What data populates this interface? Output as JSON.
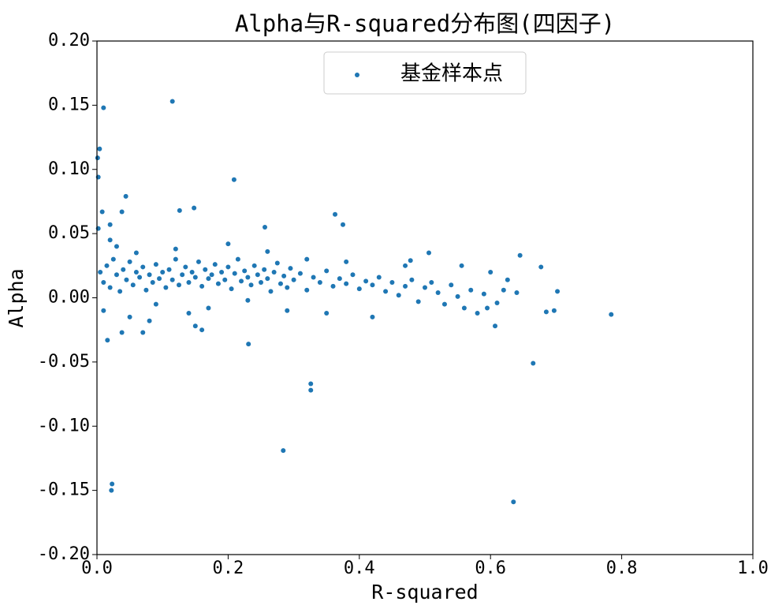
{
  "chart_data": {
    "type": "scatter",
    "title": "Alpha与R-squared分布图(四因子)",
    "x_label": "R-squared",
    "y_label": "Alpha",
    "xlim": [
      0,
      1
    ],
    "ylim": [
      -0.2,
      0.2
    ],
    "xticks": [
      {
        "value": 0,
        "label": "0.0"
      },
      {
        "value": 0.2,
        "label": "0.2"
      },
      {
        "value": 0.4,
        "label": "0.4"
      },
      {
        "value": 0.6,
        "label": "0.6"
      },
      {
        "value": 0.8,
        "label": "0.8"
      },
      {
        "value": 1,
        "label": "1.0"
      }
    ],
    "yticks": [
      {
        "value": 0.2,
        "label": "0.20"
      },
      {
        "value": 0.15,
        "label": "0.15"
      },
      {
        "value": 0.1,
        "label": "0.10"
      },
      {
        "value": 0.05,
        "label": "0.05"
      },
      {
        "value": 0,
        "label": "0.00"
      },
      {
        "value": -0.05,
        "label": "-0.05"
      },
      {
        "value": -0.1,
        "label": "-0.10"
      },
      {
        "value": -0.15,
        "label": "-0.15"
      },
      {
        "value": -0.2,
        "label": "-0.20"
      }
    ],
    "legend": "upper center",
    "series": [
      {
        "name": "基金样本点",
        "color": "#1f77b4",
        "x": [
          0.01,
          0.115,
          0.004,
          0.001,
          0.002,
          0.209,
          0.044,
          0.148,
          0.126,
          0.008,
          0.038,
          0.363,
          0.375,
          0.256,
          0.002,
          0.02,
          0.15,
          0.16,
          0.016,
          0.038,
          0.07,
          0.231,
          0.326,
          0.326,
          0.284,
          0.023,
          0.022,
          0.635,
          0.665,
          0.784,
          0.702,
          0.677,
          0.645,
          0.607,
          0.685,
          0.556,
          0.506,
          0.478,
          0.6,
          0.595,
          0.626,
          0.697,
          0.005,
          0.01,
          0.015,
          0.02,
          0.025,
          0.03,
          0.035,
          0.04,
          0.045,
          0.05,
          0.055,
          0.06,
          0.065,
          0.07,
          0.075,
          0.08,
          0.085,
          0.09,
          0.095,
          0.1,
          0.105,
          0.11,
          0.115,
          0.12,
          0.125,
          0.13,
          0.135,
          0.14,
          0.145,
          0.15,
          0.155,
          0.16,
          0.165,
          0.17,
          0.175,
          0.18,
          0.185,
          0.19,
          0.195,
          0.2,
          0.205,
          0.21,
          0.215,
          0.22,
          0.225,
          0.23,
          0.235,
          0.24,
          0.245,
          0.25,
          0.255,
          0.26,
          0.265,
          0.27,
          0.275,
          0.28,
          0.285,
          0.29,
          0.295,
          0.3,
          0.31,
          0.32,
          0.33,
          0.34,
          0.35,
          0.36,
          0.37,
          0.38,
          0.39,
          0.4,
          0.41,
          0.42,
          0.43,
          0.44,
          0.45,
          0.46,
          0.47,
          0.48,
          0.49,
          0.5,
          0.51,
          0.52,
          0.53,
          0.54,
          0.55,
          0.56,
          0.57,
          0.58,
          0.59,
          0.61,
          0.62,
          0.64,
          0.01,
          0.03,
          0.06,
          0.09,
          0.12,
          0.17,
          0.2,
          0.23,
          0.26,
          0.29,
          0.32,
          0.35,
          0.38,
          0.05,
          0.14,
          0.42,
          0.47,
          0.02,
          0.08
        ],
        "y": [
          0.148,
          0.153,
          0.116,
          0.109,
          0.094,
          0.092,
          0.079,
          0.07,
          0.068,
          0.067,
          0.067,
          0.065,
          0.057,
          0.055,
          0.054,
          0.057,
          -0.022,
          -0.025,
          -0.033,
          -0.027,
          -0.027,
          -0.036,
          -0.067,
          -0.072,
          -0.119,
          -0.145,
          -0.15,
          -0.159,
          -0.051,
          -0.013,
          0.005,
          0.024,
          0.033,
          -0.022,
          -0.011,
          0.025,
          0.035,
          0.029,
          0.02,
          -0.008,
          0.014,
          -0.01,
          0.02,
          0.012,
          0.025,
          0.008,
          0.03,
          0.018,
          0.005,
          0.022,
          0.014,
          0.028,
          0.01,
          0.02,
          0.016,
          0.024,
          0.006,
          0.018,
          0.012,
          0.026,
          0.015,
          0.02,
          0.008,
          0.022,
          0.014,
          0.03,
          0.01,
          0.018,
          0.024,
          0.012,
          0.02,
          0.016,
          0.028,
          0.009,
          0.022,
          0.015,
          0.018,
          0.026,
          0.011,
          0.02,
          0.014,
          0.024,
          0.007,
          0.019,
          0.03,
          0.013,
          0.021,
          0.016,
          0.01,
          0.025,
          0.018,
          0.012,
          0.022,
          0.015,
          0.005,
          0.02,
          0.027,
          0.011,
          0.017,
          0.008,
          0.023,
          0.014,
          0.019,
          0.006,
          0.016,
          0.012,
          0.021,
          0.009,
          0.015,
          0.011,
          0.018,
          0.007,
          0.013,
          0.01,
          0.016,
          0.005,
          0.012,
          0.002,
          0.009,
          0.014,
          -0.003,
          0.008,
          0.012,
          0.004,
          -0.005,
          0.01,
          0.001,
          -0.008,
          0.006,
          -0.012,
          0.003,
          -0.004,
          0.006,
          0.004,
          -0.01,
          0.04,
          0.035,
          -0.005,
          0.038,
          -0.008,
          0.042,
          -0.002,
          0.036,
          -0.01,
          0.03,
          -0.012,
          0.028,
          -0.015,
          -0.012,
          -0.015,
          0.025,
          0.045,
          -0.018
        ]
      }
    ]
  }
}
